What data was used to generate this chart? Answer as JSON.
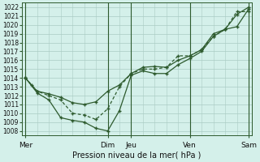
{
  "xlabel": "Pression niveau de la mer( hPa )",
  "bg_color": "#d4f0ea",
  "plot_bg_color": "#d4f0ea",
  "grid_color": "#aaccc4",
  "line_color": "#2d5a2d",
  "ylim": [
    1007.5,
    1022.5
  ],
  "yticks": [
    1008,
    1009,
    1010,
    1011,
    1012,
    1013,
    1014,
    1015,
    1016,
    1017,
    1018,
    1019,
    1020,
    1021,
    1022
  ],
  "xtick_labels": [
    "Mer",
    "Dim",
    "Jeu",
    "Ven",
    "Sam"
  ],
  "xtick_positions": [
    0,
    7,
    9,
    14,
    19
  ],
  "vline_positions": [
    0,
    7,
    9,
    14,
    19
  ],
  "line1_x": [
    0,
    0.5,
    1,
    2,
    3,
    4,
    5,
    6,
    7,
    8,
    9,
    10,
    11,
    12,
    13,
    14,
    15,
    16,
    17,
    18,
    19
  ],
  "line1_y": [
    1014.0,
    1013.2,
    1012.5,
    1012.2,
    1011.8,
    1011.2,
    1011.0,
    1011.3,
    1012.5,
    1013.2,
    1014.5,
    1015.2,
    1015.3,
    1015.2,
    1016.0,
    1016.5,
    1017.2,
    1019.0,
    1019.5,
    1021.2,
    1022.0
  ],
  "line2_x": [
    0,
    1,
    2,
    3,
    4,
    5,
    6,
    7,
    8,
    9,
    10,
    11,
    12,
    13,
    14,
    15,
    16,
    17,
    18,
    19
  ],
  "line2_y": [
    1014.0,
    1012.5,
    1012.0,
    1011.5,
    1010.0,
    1009.8,
    1009.3,
    1010.5,
    1013.0,
    1014.5,
    1015.0,
    1015.0,
    1015.2,
    1016.5,
    1016.5,
    1017.2,
    1018.7,
    1019.5,
    1021.5,
    1021.5
  ],
  "line3_x": [
    0,
    1,
    2,
    3,
    4,
    5,
    6,
    7,
    8,
    9,
    10,
    11,
    12,
    13,
    14,
    15,
    16,
    17,
    18,
    19
  ],
  "line3_y": [
    1014.0,
    1012.3,
    1011.5,
    1009.5,
    1009.2,
    1009.0,
    1008.3,
    1008.0,
    1010.3,
    1014.3,
    1014.8,
    1014.5,
    1014.5,
    1015.5,
    1016.2,
    1017.0,
    1018.7,
    1019.5,
    1019.8,
    1021.8
  ],
  "xlim": [
    -0.3,
    19.3
  ]
}
